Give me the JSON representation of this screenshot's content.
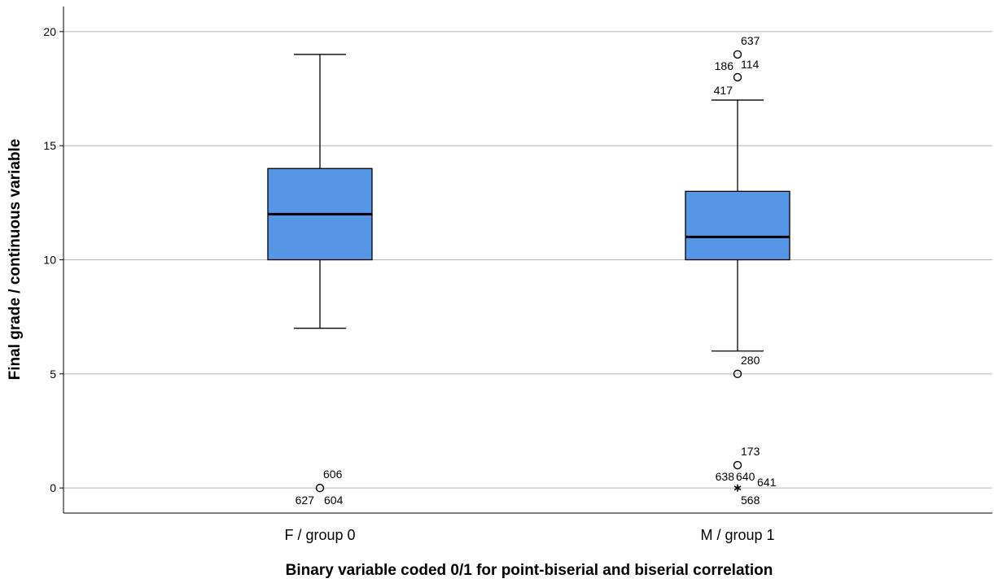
{
  "chart_data": {
    "type": "box",
    "xlabel": "Binary variable coded 0/1 for point-biserial and biserial correlation",
    "ylabel": "Final grade / continuous variable",
    "ylim": [
      -1.1,
      21.1
    ],
    "yticks": [
      0,
      5,
      10,
      15,
      20
    ],
    "ytick_labels": [
      "0",
      "5",
      "10",
      "15",
      "20"
    ],
    "grid": true,
    "box_color": "#5596e6",
    "categories": [
      "F / group 0",
      "M / group 1"
    ],
    "groups": [
      {
        "category": "F / group 0",
        "whisker_low": 7,
        "q1": 10,
        "median": 12,
        "q3": 14,
        "whisker_high": 19,
        "outliers": [
          {
            "value": 0,
            "marker": "circle",
            "labels": [
              "606",
              "627",
              "604"
            ]
          }
        ]
      },
      {
        "category": "M / group 1",
        "whisker_low": 6,
        "q1": 10,
        "median": 11,
        "q3": 13,
        "whisker_high": 17,
        "outliers": [
          {
            "value": 19,
            "marker": "circle",
            "labels": [
              "637"
            ]
          },
          {
            "value": 18,
            "marker": "circle",
            "labels": [
              "186",
              "114",
              "417"
            ]
          },
          {
            "value": 5,
            "marker": "circle",
            "labels": [
              "280"
            ]
          },
          {
            "value": 1,
            "marker": "circle",
            "labels": [
              "173"
            ]
          },
          {
            "value": 0,
            "marker": "star",
            "labels": [
              "638",
              "640",
              "641",
              "568"
            ]
          }
        ]
      }
    ]
  }
}
